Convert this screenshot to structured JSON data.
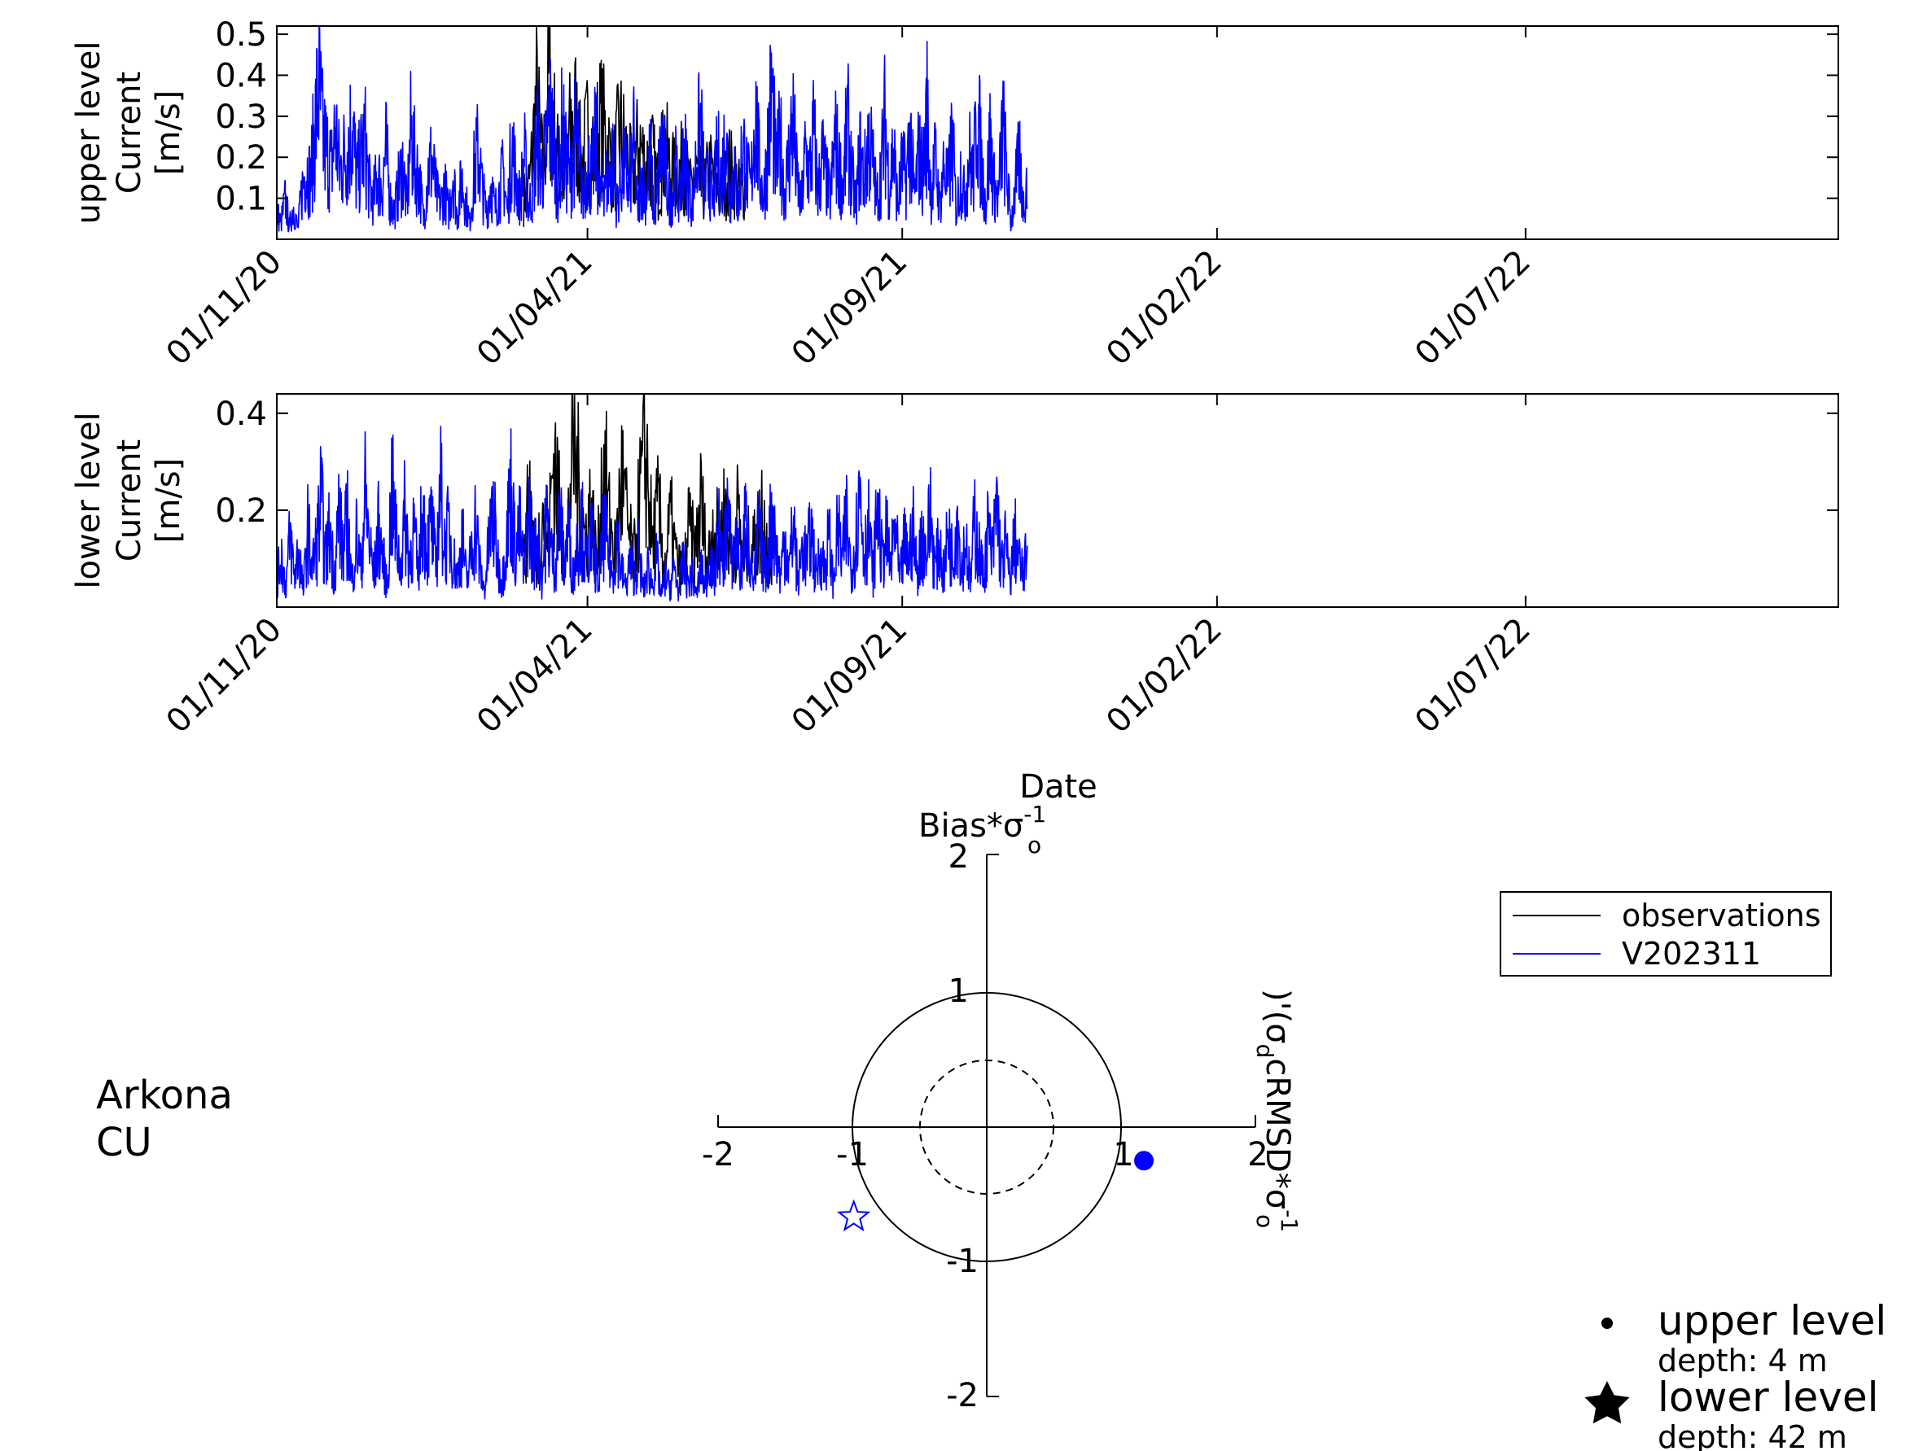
{
  "chart_data": [
    {
      "type": "line",
      "panel": "upper",
      "ylabel": [
        "upper level",
        "Current",
        "[m/s]"
      ],
      "ylim": [
        0.0,
        0.52
      ],
      "yticks": [
        0.1,
        0.2,
        0.3,
        0.4,
        0.5
      ],
      "ytick_labels": [
        "0.1",
        "0.2",
        "0.3",
        "0.4",
        "0.5"
      ],
      "xlim": [
        "2020-11-01",
        "2022-11-30"
      ],
      "xticks": [
        "2020-11-01",
        "2021-04-01",
        "2021-09-01",
        "2022-02-01",
        "2022-07-01"
      ],
      "xtick_labels": [
        "01/11/20",
        "01/04/21",
        "01/09/21",
        "01/02/22",
        "01/07/22"
      ],
      "grid": false,
      "series": [
        {
          "name": "observations",
          "color": "#000000",
          "x_start": "2021-03-01",
          "x_end": "2021-06-18",
          "values": [
            0.12,
            0.18,
            0.42,
            0.2,
            0.5,
            0.28,
            0.15,
            0.3,
            0.38,
            0.22,
            0.32,
            0.27,
            0.35,
            0.3,
            0.2,
            0.33,
            0.26,
            0.18,
            0.3,
            0.22,
            0.25,
            0.16,
            0.28,
            0.2,
            0.19,
            0.23,
            0.15,
            0.2,
            0.14,
            0.21,
            0.17,
            0.12,
            0.22,
            0.18,
            0.13,
            0.2
          ]
        },
        {
          "name": "V202311",
          "color": "#0000ff",
          "x_start": "2020-11-01",
          "x_end": "2021-11-01",
          "values": [
            0.08,
            0.05,
            0.12,
            0.04,
            0.1,
            0.03,
            0.15,
            0.22,
            0.18,
            0.32,
            0.46,
            0.3,
            0.26,
            0.22,
            0.34,
            0.2,
            0.25,
            0.28,
            0.36,
            0.18,
            0.24,
            0.3,
            0.16,
            0.12,
            0.2,
            0.15,
            0.27,
            0.12,
            0.08,
            0.16,
            0.22,
            0.1,
            0.33,
            0.22,
            0.18,
            0.06,
            0.2,
            0.24,
            0.14,
            0.1,
            0.16,
            0.08,
            0.21,
            0.06,
            0.18,
            0.12,
            0.05,
            0.2,
            0.27,
            0.15,
            0.08,
            0.17,
            0.09,
            0.14,
            0.2,
            0.08,
            0.3,
            0.18,
            0.12,
            0.25,
            0.1,
            0.14,
            0.32,
            0.2,
            0.25,
            0.38,
            0.28,
            0.15,
            0.34,
            0.22,
            0.18,
            0.3,
            0.26,
            0.12,
            0.24,
            0.18,
            0.3,
            0.12,
            0.2,
            0.16,
            0.26,
            0.1,
            0.18,
            0.22,
            0.14,
            0.3,
            0.08,
            0.2,
            0.12,
            0.25,
            0.06,
            0.2,
            0.3,
            0.16,
            0.1,
            0.22,
            0.12,
            0.28,
            0.18,
            0.1,
            0.24,
            0.35,
            0.14,
            0.2,
            0.1,
            0.26,
            0.18,
            0.32,
            0.12,
            0.22,
            0.08,
            0.3,
            0.2,
            0.15,
            0.4,
            0.22,
            0.12,
            0.28,
            0.45,
            0.2,
            0.3,
            0.14,
            0.24,
            0.36,
            0.18,
            0.1,
            0.26,
            0.2,
            0.32,
            0.14,
            0.25,
            0.18,
            0.12,
            0.3,
            0.22,
            0.16,
            0.35,
            0.2,
            0.1,
            0.26,
            0.18,
            0.3,
            0.24,
            0.12,
            0.2,
            0.36,
            0.15,
            0.28,
            0.1,
            0.22,
            0.18,
            0.32,
            0.12,
            0.26,
            0.2,
            0.38,
            0.14,
            0.24,
            0.1,
            0.22,
            0.16,
            0.3,
            0.08,
            0.2,
            0.12,
            0.26,
            0.18,
            0.4,
            0.22,
            0.1,
            0.3,
            0.16,
            0.12,
            0.34,
            0.2,
            0.05,
            0.15,
            0.24,
            0.1,
            0.2
          ]
        }
      ]
    },
    {
      "type": "line",
      "panel": "lower",
      "ylabel": [
        "lower level",
        "Current",
        "[m/s]"
      ],
      "ylim": [
        0.0,
        0.44
      ],
      "yticks": [
        0.2,
        0.4
      ],
      "ytick_labels": [
        "0.2",
        "0.4"
      ],
      "xlim": [
        "2020-11-01",
        "2022-11-30"
      ],
      "xticks": [
        "2020-11-01",
        "2021-04-01",
        "2021-09-01",
        "2022-02-01",
        "2022-07-01"
      ],
      "xtick_labels": [
        "01/11/20",
        "01/04/21",
        "01/09/21",
        "01/02/22",
        "01/07/22"
      ],
      "xlabel": "Date",
      "grid": false,
      "series": [
        {
          "name": "observations",
          "color": "#000000",
          "x_start": "2021-03-01",
          "x_end": "2021-07-01",
          "values": [
            0.1,
            0.3,
            0.08,
            0.28,
            0.15,
            0.42,
            0.2,
            0.12,
            0.44,
            0.3,
            0.18,
            0.26,
            0.1,
            0.38,
            0.22,
            0.14,
            0.33,
            0.2,
            0.12,
            0.28,
            0.4,
            0.16,
            0.25,
            0.1,
            0.22,
            0.12,
            0.08,
            0.2,
            0.14,
            0.27,
            0.1,
            0.22,
            0.16,
            0.26,
            0.12,
            0.24,
            0.1,
            0.18,
            0.14,
            0.25,
            0.12,
            0.18
          ]
        },
        {
          "name": "V202311",
          "color": "#0000ff",
          "x_start": "2020-11-01",
          "x_end": "2021-11-01",
          "values": [
            0.06,
            0.14,
            0.05,
            0.18,
            0.08,
            0.15,
            0.04,
            0.2,
            0.1,
            0.16,
            0.27,
            0.12,
            0.2,
            0.08,
            0.24,
            0.14,
            0.22,
            0.06,
            0.18,
            0.1,
            0.28,
            0.16,
            0.08,
            0.2,
            0.13,
            0.05,
            0.3,
            0.18,
            0.1,
            0.24,
            0.12,
            0.2,
            0.08,
            0.26,
            0.15,
            0.22,
            0.1,
            0.3,
            0.16,
            0.2,
            0.12,
            0.08,
            0.18,
            0.06,
            0.14,
            0.22,
            0.1,
            0.04,
            0.16,
            0.24,
            0.12,
            0.06,
            0.18,
            0.3,
            0.14,
            0.2,
            0.08,
            0.26,
            0.12,
            0.18,
            0.06,
            0.22,
            0.15,
            0.1,
            0.24,
            0.12,
            0.2,
            0.08,
            0.16,
            0.22,
            0.1,
            0.18,
            0.12,
            0.06,
            0.2,
            0.14,
            0.08,
            0.18,
            0.1,
            0.05,
            0.12,
            0.08,
            0.14,
            0.04,
            0.1,
            0.06,
            0.12,
            0.03,
            0.08,
            0.05,
            0.1,
            0.04,
            0.12,
            0.06,
            0.08,
            0.03,
            0.1,
            0.05,
            0.14,
            0.06,
            0.2,
            0.1,
            0.26,
            0.12,
            0.18,
            0.08,
            0.22,
            0.14,
            0.06,
            0.2,
            0.12,
            0.1,
            0.24,
            0.15,
            0.08,
            0.18,
            0.1,
            0.22,
            0.06,
            0.16,
            0.12,
            0.2,
            0.08,
            0.14,
            0.1,
            0.18,
            0.06,
            0.2,
            0.12,
            0.22,
            0.1,
            0.16,
            0.31,
            0.14,
            0.2,
            0.08,
            0.26,
            0.12,
            0.18,
            0.1,
            0.22,
            0.06,
            0.16,
            0.12,
            0.2,
            0.08,
            0.18,
            0.14,
            0.24,
            0.1,
            0.16,
            0.08,
            0.2,
            0.12,
            0.26,
            0.1,
            0.18,
            0.06,
            0.22,
            0.14,
            0.08,
            0.2,
            0.12,
            0.27,
            0.1,
            0.16,
            0.06,
            0.18,
            0.12,
            0.08,
            0.15
          ]
        }
      ]
    },
    {
      "type": "scatter",
      "panel": "target",
      "xlabel": "cRMSD*σ",
      "xlabel_sup": "-1",
      "xlabel_sub": "o",
      "xlabel_extra": "(σ",
      "xlabel_extra_sub": "d",
      "xlabel_extra_tail": ")'",
      "ylabel": "Bias*σ",
      "ylabel_sup": "-1",
      "ylabel_sub": "o",
      "xlim": [
        -2,
        2
      ],
      "ylim": [
        -2,
        2
      ],
      "xtick_labels": [
        "-2",
        "-1",
        "1",
        "2"
      ],
      "ytick_labels": [
        "2",
        "1",
        "-1",
        "-2"
      ],
      "circles": [
        {
          "radius": 1.0,
          "style": "solid"
        },
        {
          "radius": 0.5,
          "style": "dashed"
        }
      ],
      "points": [
        {
          "name": "upper level",
          "x": 1.17,
          "y": -0.25,
          "marker": "dot",
          "color": "#0000ff",
          "filled": true
        },
        {
          "name": "lower level",
          "x": -0.99,
          "y": -0.67,
          "marker": "star",
          "color": "#0000ff",
          "filled": false
        }
      ]
    }
  ],
  "legend": {
    "entries": [
      {
        "label": "observations",
        "color": "#000000"
      },
      {
        "label": "V202311",
        "color": "#0000ff"
      }
    ]
  },
  "station": {
    "line1": "Arkona",
    "line2": "CU"
  },
  "marker_key": [
    {
      "symbol": "dot",
      "label": "upper level",
      "detail": "depth: 4 m"
    },
    {
      "symbol": "star",
      "label": "lower level",
      "detail": "depth: 42 m"
    }
  ]
}
